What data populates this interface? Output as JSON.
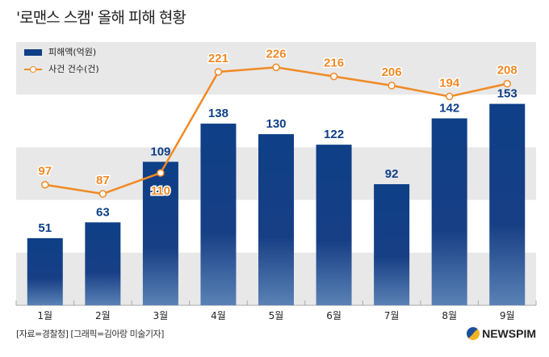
{
  "title": "'로맨스 스캠' 올해 피해 현황",
  "source": "[자료=경찰청] [그래픽=김아랑 미술기자]",
  "logo": "NEWSPIM",
  "colors": {
    "bar": "#0e3f87",
    "line": "#f08a24",
    "band": "#e8e8e8"
  },
  "chart_data": {
    "type": "bar+line",
    "categories": [
      "1월",
      "2월",
      "3월",
      "4월",
      "5월",
      "6월",
      "7월",
      "8월",
      "9월"
    ],
    "series": [
      {
        "name": "피해액(억원)",
        "type": "bar",
        "values": [
          51,
          63,
          109,
          138,
          130,
          122,
          92,
          142,
          153
        ]
      },
      {
        "name": "사건 건수(건)",
        "type": "line",
        "values": [
          97,
          87,
          110,
          221,
          226,
          216,
          206,
          194,
          208
        ]
      }
    ],
    "legend": "top-left",
    "grid": "alternating bands"
  }
}
